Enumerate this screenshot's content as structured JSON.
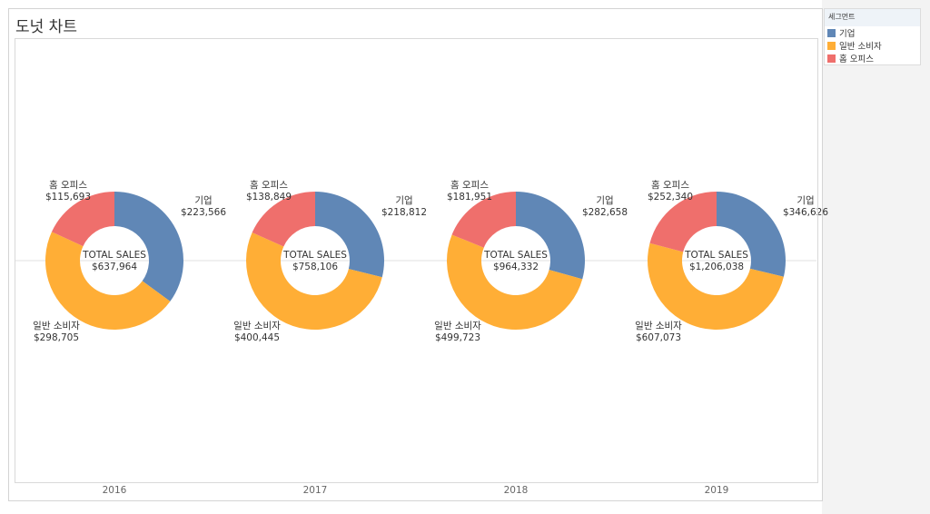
{
  "title": "도넛 차트",
  "legend": {
    "title": "세그먼트",
    "items": [
      {
        "label": "기업",
        "color": "#6087b6"
      },
      {
        "label": "일반 소비자",
        "color": "#ffae36"
      },
      {
        "label": "홈 오피스",
        "color": "#ef6f6c"
      }
    ]
  },
  "chart_data": {
    "type": "pie",
    "title": "도넛 차트",
    "center_label": "TOTAL SALES",
    "categories": [
      "기업",
      "일반 소비자",
      "홈 오피스"
    ],
    "colors": [
      "#6087b6",
      "#ffae36",
      "#ef6f6c"
    ],
    "panels": [
      {
        "year": "2016",
        "total": "$637,964",
        "values": [
          223566,
          298705,
          115693
        ],
        "labels": [
          "$223,566",
          "$298,705",
          "$115,693"
        ]
      },
      {
        "year": "2017",
        "total": "$758,106",
        "values": [
          218812,
          400445,
          138849
        ],
        "labels": [
          "$218,812",
          "$400,445",
          "$138,849"
        ]
      },
      {
        "year": "2018",
        "total": "$964,332",
        "values": [
          282658,
          499723,
          181951
        ],
        "labels": [
          "$282,658",
          "$499,723",
          "$181,951"
        ]
      },
      {
        "year": "2019",
        "total": "$1,206,038",
        "values": [
          346626,
          607073,
          252340
        ],
        "labels": [
          "$346,626",
          "$607,073",
          "$252,340"
        ]
      }
    ]
  }
}
